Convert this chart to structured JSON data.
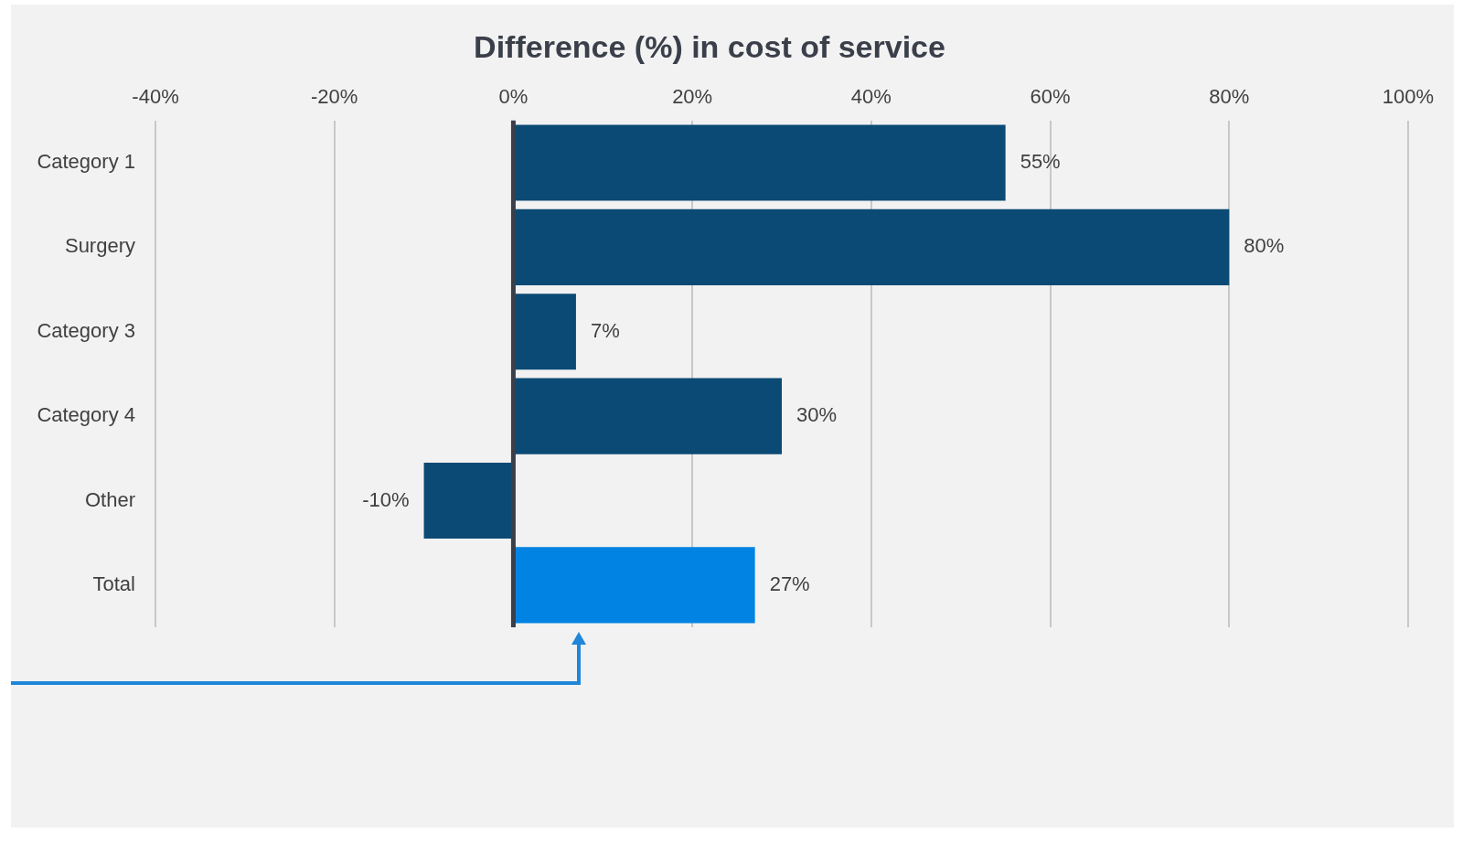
{
  "chart_data": {
    "type": "bar",
    "orientation": "horizontal",
    "title": "Difference (%) in cost of service",
    "categories": [
      "Category 1",
      "Surgery",
      "Category 3",
      "Category 4",
      "Other",
      "Total"
    ],
    "values": [
      55,
      80,
      7,
      30,
      -10,
      27
    ],
    "colors": [
      "#0b4a74",
      "#0b4a74",
      "#0b4a74",
      "#0b4a74",
      "#0b4a74",
      "#0083e3"
    ],
    "value_labels": [
      "55%",
      "80%",
      "7%",
      "30%",
      "-10%",
      "27%"
    ],
    "xlim": [
      -40,
      100
    ],
    "xticks": [
      {
        "value": -40,
        "label": "-40%"
      },
      {
        "value": -20,
        "label": "-20%"
      },
      {
        "value": 0,
        "label": "0%"
      },
      {
        "value": 20,
        "label": "20%"
      },
      {
        "value": 40,
        "label": "40%"
      },
      {
        "value": 60,
        "label": "60%"
      },
      {
        "value": 80,
        "label": "80%"
      },
      {
        "value": 100,
        "label": "100%"
      }
    ],
    "ref_lines": [
      {
        "axis": "x",
        "value": 0,
        "color": "#3a3f4a"
      }
    ],
    "grid": "x",
    "legend": false
  }
}
